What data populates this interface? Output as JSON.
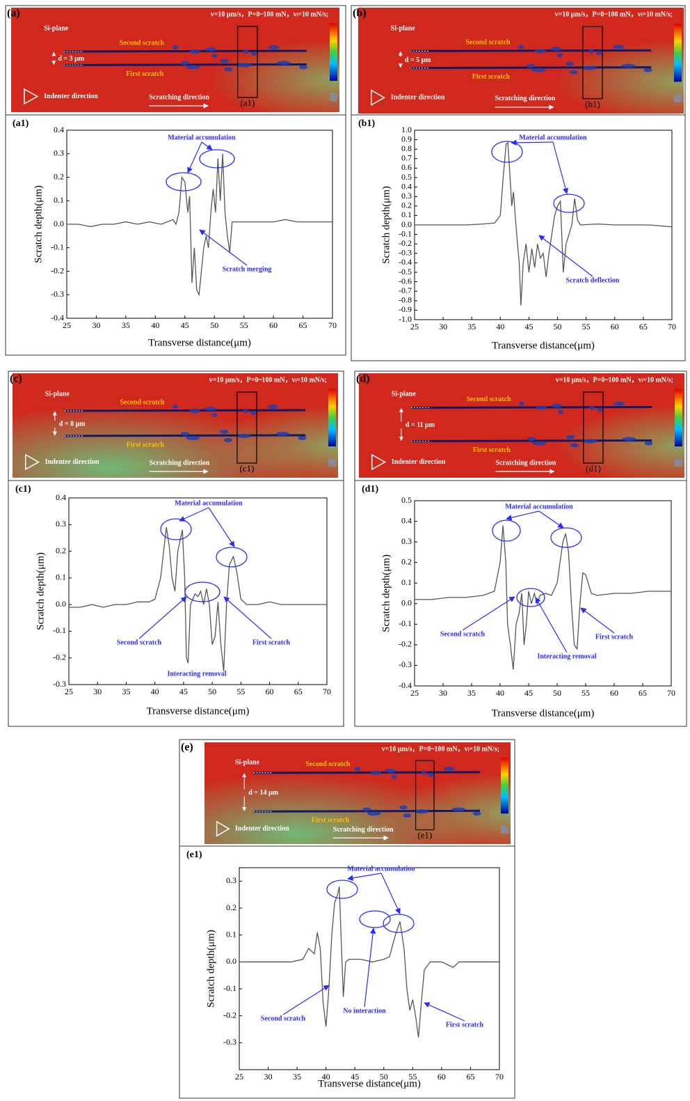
{
  "images": [
    {
      "label": "(a)",
      "plane": "Si-plane",
      "conditions": "v=10 μm/s，P=0~100 mN，vₗ=10 mN/s;",
      "second_scratch": "Second scratch",
      "first_scratch": "First scratch",
      "spacing": "d = 3 μm",
      "indenter": "Indenter direction",
      "scratching": "Scratching direction",
      "section": "(a1)"
    },
    {
      "label": "(b)",
      "plane": "Si-plane",
      "conditions": "v=10 μm/s，P=0~100 mN，vₗ=10 mN/s;",
      "second_scratch": "Second scratch",
      "first_scratch": "First scratch",
      "spacing": "d = 5 μm",
      "indenter": "Indenter direction",
      "scratching": "Scratching direction",
      "section": "(b1)"
    },
    {
      "label": "(c)",
      "plane": "Si-plane",
      "conditions": "v=10 μm/s，P=0~100 mN，vₗ=10 mN/s;",
      "second_scratch": "Second scratch",
      "first_scratch": "First scratch",
      "spacing": "d = 8 μm",
      "indenter": "Indenter direction",
      "scratching": "Scratching direction",
      "section": "(c1)"
    },
    {
      "label": "(d)",
      "plane": "Si-plane",
      "conditions": "v=10 μm/s，P=0~100 mN，vₗ=10 mN/s;",
      "second_scratch": "Second scratch",
      "first_scratch": "First scratch",
      "spacing": "d = 11 μm",
      "indenter": "Indenter direction",
      "scratching": "Scratching direction",
      "section": "(d1)"
    },
    {
      "label": "(e)",
      "plane": "Si-plane",
      "conditions": "v=10 μm/s，P=0~100 mN，vₗ=10 mN/s;",
      "second_scratch": "Second scratch",
      "first_scratch": "First scratch",
      "spacing": "d = 14 μm",
      "indenter": "Indenter direction",
      "scratching": "Scratching direction",
      "section": "(e1)"
    }
  ],
  "chart_data": [
    {
      "type": "line",
      "label": "(a1)",
      "x_label": "Transverse distance(μm)",
      "y_label": "Scratch depth(μm)",
      "x": [
        25,
        27,
        29,
        31,
        33,
        35,
        37,
        39,
        41,
        42,
        43,
        43.5,
        44,
        44.5,
        45,
        45.5,
        45.8,
        46.2,
        46.6,
        47,
        47.4,
        47.8,
        48.2,
        48.6,
        49,
        49.4,
        49.8,
        50.2,
        50.6,
        51,
        51.4,
        51.8,
        52.2,
        52.6,
        53,
        54,
        56,
        58,
        60,
        62,
        64,
        66,
        68,
        70
      ],
      "series": [
        {
          "color": "#555555",
          "values": [
            0,
            0,
            -0.01,
            0,
            0,
            0.01,
            0,
            0.01,
            0,
            0.01,
            0.02,
            0,
            0.05,
            0.2,
            0.18,
            0.05,
            0.12,
            -0.25,
            -0.1,
            -0.28,
            -0.3,
            -0.2,
            -0.1,
            -0.05,
            -0.1,
            0.05,
            0.15,
            0.05,
            0.28,
            0.1,
            0.3,
            0.05,
            -0.05,
            -0.12,
            0.01,
            0.01,
            0.01,
            0.01,
            0.01,
            0.02,
            0.01,
            0.01,
            0.01,
            0.01
          ]
        }
      ],
      "xlim": [
        25,
        70
      ],
      "xticks": [
        25,
        30,
        35,
        40,
        45,
        50,
        55,
        60,
        65,
        70
      ],
      "ylim": [
        -0.4,
        0.4
      ],
      "yticks": [
        -0.4,
        -0.3,
        -0.2,
        -0.1,
        {
          "value": 0,
          "label": "0.0"
        },
        0.1,
        0.2,
        0.3,
        0.4
      ],
      "annotations": [
        "Material accumulation",
        "Scratch merging"
      ]
    },
    {
      "type": "line",
      "label": "(b1)",
      "x_label": "Transverse distance(μm)",
      "y_label": "Scratch depth(μm)",
      "x": [
        25,
        28,
        31,
        34,
        37,
        39,
        40,
        40.5,
        41,
        41.3,
        41.6,
        42,
        42.3,
        42.6,
        43,
        43.3,
        43.6,
        44,
        44.5,
        45,
        45.5,
        46,
        46.5,
        47,
        47.5,
        48,
        48.5,
        49,
        49.5,
        50,
        50.5,
        51,
        51.5,
        52,
        52.5,
        53,
        53.5,
        54,
        57,
        60,
        63,
        66,
        70
      ],
      "series": [
        {
          "color": "#555555",
          "values": [
            0,
            0,
            0,
            0,
            0.01,
            0.02,
            0.1,
            0.5,
            0.85,
            0.87,
            0.6,
            0.2,
            0.35,
            0.1,
            -0.2,
            -0.4,
            -0.85,
            -0.4,
            -0.2,
            -0.5,
            -0.25,
            -0.45,
            -0.2,
            -0.35,
            -0.3,
            -0.55,
            -0.3,
            -0.1,
            0.1,
            0.2,
            0.25,
            -0.5,
            -0.2,
            -0.1,
            0,
            0.28,
            0.05,
            0,
            0.01,
            0,
            0,
            0,
            -0.02
          ]
        }
      ],
      "xlim": [
        25,
        70
      ],
      "xticks": [
        25,
        30,
        35,
        40,
        45,
        50,
        55,
        60,
        65,
        70
      ],
      "ylim": [
        -1,
        1
      ],
      "yticks": [
        {
          "value": -1,
          "label": "-1.0"
        },
        -0.9,
        -0.8,
        -0.7,
        -0.6,
        -0.5,
        -0.4,
        -0.3,
        -0.2,
        -0.1,
        {
          "value": 0,
          "label": "0.0"
        },
        0.1,
        0.2,
        0.3,
        0.4,
        0.5,
        0.6,
        0.7,
        0.8,
        0.9,
        {
          "value": 1,
          "label": "1.0"
        }
      ],
      "annotations": [
        "Material accumulation",
        "Scratch deflection"
      ]
    },
    {
      "type": "line",
      "label": "(c1)",
      "x_label": "Transverse distance(μm)",
      "y_label": "Scratch depth(μm)",
      "x": [
        25,
        27,
        29,
        31,
        33,
        35,
        37,
        39,
        40,
        41,
        42,
        42.5,
        43,
        43.5,
        44,
        44.8,
        45.2,
        45.5,
        45.8,
        46.2,
        47,
        47.5,
        48,
        48.5,
        49,
        49.5,
        50,
        50.5,
        51,
        51.5,
        52,
        52.5,
        53,
        53.7,
        54.3,
        55,
        56,
        58,
        60,
        62,
        64,
        66,
        68,
        70
      ],
      "series": [
        {
          "color": "#555555",
          "values": [
            -0.01,
            -0.01,
            0,
            -0.01,
            0,
            0,
            0.01,
            0.01,
            0.02,
            0.1,
            0.29,
            0.22,
            0.1,
            0.05,
            0.2,
            0.28,
            0.1,
            -0.2,
            -0.22,
            0,
            0.04,
            0.03,
            0.05,
            0,
            0.06,
            0,
            -0.15,
            -0.12,
            0.01,
            -0.15,
            -0.25,
            0,
            0.15,
            0.18,
            0.12,
            0.02,
            0,
            0,
            0.01,
            0,
            0,
            0,
            0,
            0
          ]
        }
      ],
      "xlim": [
        25,
        70
      ],
      "xticks": [
        25,
        30,
        35,
        40,
        45,
        50,
        55,
        60,
        65,
        70
      ],
      "ylim": [
        -0.3,
        0.4
      ],
      "yticks": [
        -0.3,
        -0.2,
        -0.1,
        {
          "value": 0,
          "label": "0.0"
        },
        0.1,
        0.2,
        0.3,
        0.4
      ],
      "annotations": [
        "Material accumulation",
        "Second scratch",
        "First scratch",
        "Interacting removal"
      ]
    },
    {
      "type": "line",
      "label": "(d1)",
      "x_label": "Transverse distance(μm)",
      "y_label": "Scratch depth(μm)",
      "x": [
        25,
        28,
        31,
        34,
        37,
        39,
        40,
        40.5,
        41,
        41.3,
        41.8,
        42.3,
        42.8,
        43.3,
        43.8,
        44.2,
        44.6,
        45,
        45.5,
        46,
        46.5,
        47,
        48,
        49,
        50,
        51,
        51.5,
        52,
        52.5,
        53,
        53.5,
        54,
        54.5,
        55,
        56,
        57,
        60,
        63,
        66,
        70
      ],
      "series": [
        {
          "color": "#555555",
          "values": [
            0.02,
            0.02,
            0.03,
            0.03,
            0.04,
            0.06,
            0.2,
            0.38,
            0.2,
            -0.1,
            -0.2,
            -0.32,
            -0.1,
            -0.05,
            0.05,
            -0.2,
            -0.1,
            0.06,
            0,
            0.05,
            0,
            0.04,
            0.05,
            0.04,
            0.1,
            0.3,
            0.34,
            0.25,
            0,
            -0.2,
            -0.22,
            0,
            0.15,
            0.14,
            0.05,
            0.04,
            0.05,
            0.05,
            0.06,
            0.06
          ]
        }
      ],
      "xlim": [
        25,
        70
      ],
      "xticks": [
        25,
        30,
        35,
        40,
        45,
        50,
        55,
        60,
        65,
        70
      ],
      "ylim": [
        -0.4,
        0.5
      ],
      "yticks": [
        -0.4,
        -0.3,
        -0.2,
        -0.1,
        {
          "value": 0,
          "label": "0.0"
        },
        0.1,
        0.2,
        0.3,
        0.4,
        0.5
      ],
      "annotations": [
        "Material accumulation",
        "Second scratch",
        "Interacting removal",
        "First scratch"
      ]
    },
    {
      "type": "line",
      "label": "(e1)",
      "x_label": "Transverse distance(μm)",
      "y_label": "Scratch depth(μm)",
      "x": [
        25,
        28,
        31,
        34,
        36,
        37,
        38,
        38.5,
        39,
        39.5,
        40,
        40.5,
        41,
        41.5,
        42,
        42.3,
        42.6,
        43,
        43.4,
        44,
        46,
        48,
        50,
        51,
        52,
        52.8,
        53.5,
        54,
        54.5,
        55,
        55.5,
        56,
        56.5,
        57,
        58,
        60,
        62,
        63,
        66,
        70
      ],
      "series": [
        {
          "color": "#555555",
          "values": [
            0,
            0,
            0,
            0,
            0.01,
            0.05,
            0.03,
            0.11,
            0.05,
            -0.15,
            -0.24,
            -0.1,
            0.1,
            0.22,
            0.25,
            0.28,
            0.1,
            -0.13,
            0,
            0.01,
            0.01,
            0,
            0.01,
            0.02,
            0.1,
            0.15,
            0.05,
            -0.1,
            -0.18,
            -0.14,
            -0.2,
            -0.28,
            -0.15,
            -0.03,
            0,
            0,
            -0.02,
            0,
            0,
            0
          ]
        }
      ],
      "xlim": [
        25,
        70
      ],
      "xticks": [
        25,
        30,
        35,
        40,
        45,
        50,
        55,
        60,
        65,
        70
      ],
      "ylim": [
        -0.4,
        0.35
      ],
      "yticks": [
        -0.3,
        -0.2,
        -0.1,
        {
          "value": 0,
          "label": "0.0"
        },
        0.1,
        0.2,
        0.3
      ],
      "annotations": [
        "Material accumulation",
        "Second scratch",
        "No interaction",
        "First scratch"
      ]
    }
  ]
}
